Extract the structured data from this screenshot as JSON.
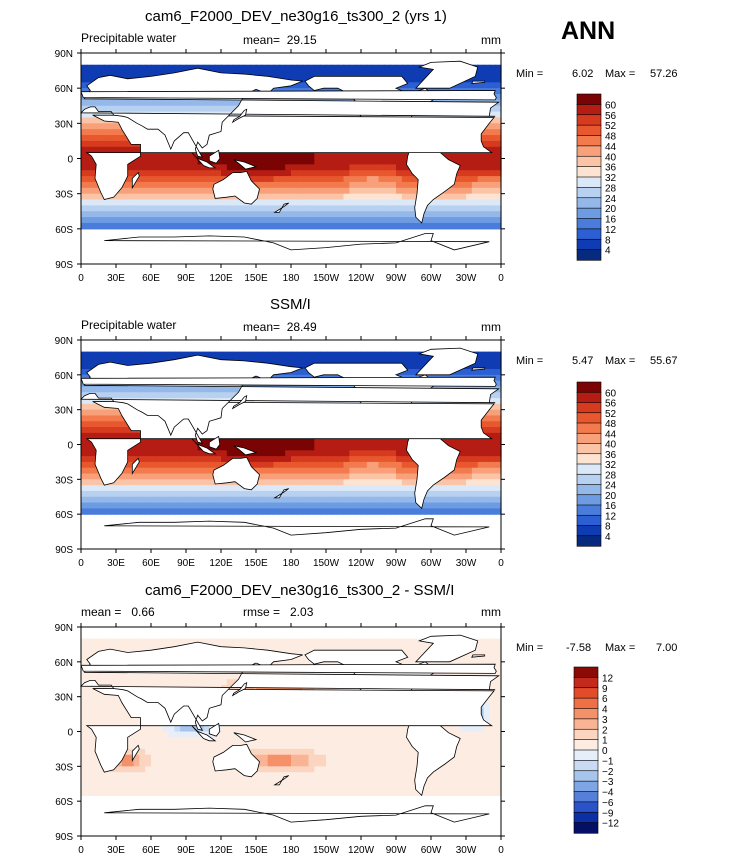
{
  "season": "ANN",
  "chart_data": [
    {
      "type": "heatmap",
      "title": "cam6_F2000_DEV_ne30g16_ts300_2 (yrs 1)",
      "left_string": "Precipitable water",
      "center_string": "mean=  29.15",
      "units": "mm",
      "min_label": "Min =",
      "min_value": "6.02",
      "max_label": "Max =",
      "max_value": "57.26",
      "xticks": [
        "0",
        "30E",
        "60E",
        "90E",
        "120E",
        "150E",
        "180",
        "150W",
        "120W",
        "90W",
        "60W",
        "30W",
        "0"
      ],
      "yticks": [
        "90N",
        "60N",
        "30N",
        "0",
        "30S",
        "60S",
        "90S"
      ],
      "colorbar_labels": [
        "60",
        "56",
        "52",
        "48",
        "44",
        "40",
        "36",
        "32",
        "28",
        "24",
        "20",
        "16",
        "12",
        "8",
        "4"
      ],
      "colorbar_colors": [
        "#7a0403",
        "#b51d14",
        "#d63a1f",
        "#e8572e",
        "#f27a4d",
        "#f7a07a",
        "#fbc4a6",
        "#fde4d2",
        "#dbe8f7",
        "#b8d1f0",
        "#94b8ea",
        "#6d9ce3",
        "#4a7ddb",
        "#2b5fd3",
        "#0f3cb3",
        "#062a80"
      ],
      "scale": "precip"
    },
    {
      "type": "heatmap",
      "title": "SSM/I",
      "left_string": "Precipitable water",
      "center_string": "mean=  28.49",
      "units": "mm",
      "min_label": "Min =",
      "min_value": "5.47",
      "max_label": "Max =",
      "max_value": "55.67",
      "xticks": [
        "0",
        "30E",
        "60E",
        "90E",
        "120E",
        "150E",
        "180",
        "150W",
        "120W",
        "90W",
        "60W",
        "30W",
        "0"
      ],
      "yticks": [
        "90N",
        "60N",
        "30N",
        "0",
        "30S",
        "60S",
        "90S"
      ],
      "colorbar_labels": [
        "60",
        "56",
        "52",
        "48",
        "44",
        "40",
        "36",
        "32",
        "28",
        "24",
        "20",
        "16",
        "12",
        "8",
        "4"
      ],
      "colorbar_colors": [
        "#7a0403",
        "#b51d14",
        "#d63a1f",
        "#e8572e",
        "#f27a4d",
        "#f7a07a",
        "#fbc4a6",
        "#fde4d2",
        "#dbe8f7",
        "#b8d1f0",
        "#94b8ea",
        "#6d9ce3",
        "#4a7ddb",
        "#2b5fd3",
        "#0f3cb3",
        "#062a80"
      ],
      "scale": "precip"
    },
    {
      "type": "heatmap",
      "title": "cam6_F2000_DEV_ne30g16_ts300_2 - SSM/I",
      "left_string": "mean =   0.66",
      "center_string": "rmse =   2.03",
      "units": "mm",
      "min_label": "Min =",
      "min_value": "-7.58",
      "max_label": "Max =",
      "max_value": "7.00",
      "xticks": [
        "0",
        "30E",
        "60E",
        "90E",
        "120E",
        "150E",
        "180",
        "150W",
        "120W",
        "90W",
        "60W",
        "30W",
        "0"
      ],
      "yticks": [
        "90N",
        "60N",
        "30N",
        "0",
        "30S",
        "60S",
        "90S"
      ],
      "colorbar_labels": [
        "12",
        "9",
        "6",
        "4",
        "3",
        "2",
        "1",
        "0",
        "−1",
        "−2",
        "−3",
        "−4",
        "−6",
        "−9",
        "−12"
      ],
      "colorbar_colors": [
        "#8b0a06",
        "#c42a1b",
        "#e24c2b",
        "#f06f44",
        "#f59169",
        "#f9b395",
        "#fcd5c1",
        "#fdece2",
        "#e6eef9",
        "#c8dbf3",
        "#a7c4ec",
        "#7fa6e4",
        "#557fd9",
        "#2a53c9",
        "#0d2fa6",
        "#050f66"
      ],
      "scale": "diff"
    }
  ]
}
